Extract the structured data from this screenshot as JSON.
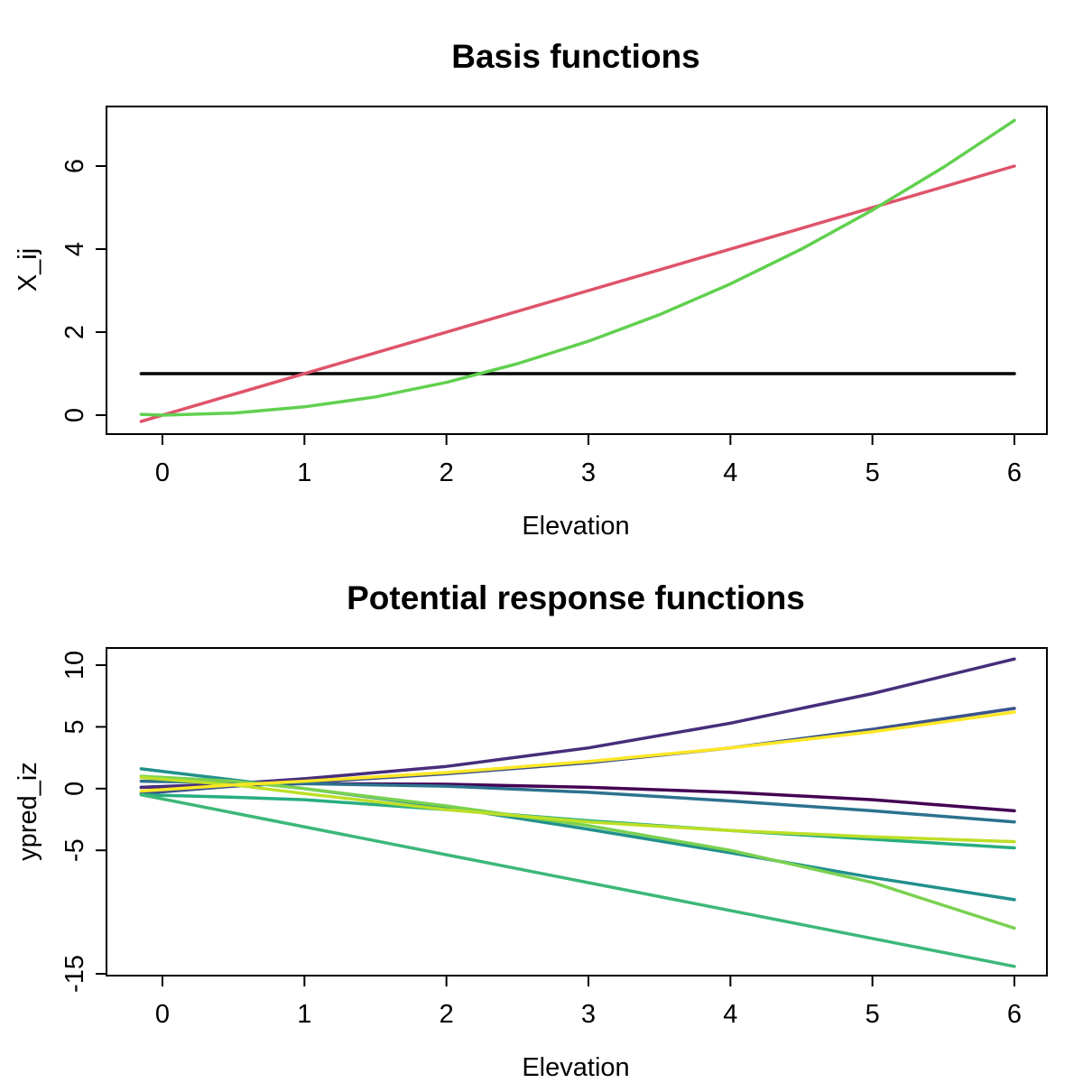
{
  "chart_data": [
    {
      "type": "line",
      "title": "Basis functions",
      "xlabel": "Elevation",
      "ylabel": "X_ij",
      "xlim": [
        -0.15,
        6.0
      ],
      "ylim": [
        -0.5,
        7.3
      ],
      "xticks": [
        0,
        1,
        2,
        3,
        4,
        5,
        6
      ],
      "yticks": [
        0,
        2,
        4,
        6
      ],
      "series": [
        {
          "color": "#000000",
          "x": [
            -0.15,
            6.0
          ],
          "y": [
            1,
            1
          ]
        },
        {
          "color": "#DF536B",
          "x": [
            -0.15,
            6.0
          ],
          "y": [
            -0.15,
            6.0
          ]
        },
        {
          "color": "#61D04F",
          "x": [
            -0.15,
            0,
            0.5,
            1,
            1.5,
            2,
            2.5,
            3,
            3.5,
            4,
            4.5,
            5,
            5.5,
            6.0
          ],
          "y": [
            0.02,
            0,
            0.05,
            0.2,
            0.44,
            0.79,
            1.24,
            1.78,
            2.42,
            3.16,
            4.0,
            4.94,
            5.97,
            7.1
          ]
        }
      ]
    },
    {
      "type": "line",
      "title": "Potential response functions",
      "xlabel": "Elevation",
      "ylabel": "ypred_iz",
      "xlim": [
        -0.15,
        6.0
      ],
      "ylim": [
        -15,
        10.5
      ],
      "xticks": [
        0,
        1,
        2,
        3,
        4,
        5,
        6
      ],
      "yticks": [
        10,
        5,
        0,
        -5,
        -15
      ],
      "series": [
        {
          "color": "#440154",
          "x": [
            -0.15,
            0.5,
            1,
            2,
            3,
            4,
            5,
            6.0
          ],
          "y": [
            0.1,
            0.3,
            0.4,
            0.35,
            0.1,
            -0.3,
            -0.9,
            -1.8
          ]
        },
        {
          "color": "#472D7B",
          "x": [
            -0.15,
            0.5,
            1,
            2,
            3,
            4,
            5,
            6.0
          ],
          "y": [
            0.1,
            0.4,
            0.8,
            1.8,
            3.3,
            5.3,
            7.7,
            10.5
          ]
        },
        {
          "color": "#3B528B",
          "x": [
            -0.15,
            0.5,
            1,
            2,
            3,
            4,
            5,
            6.0
          ],
          "y": [
            -0.4,
            0.2,
            0.5,
            1.2,
            2.1,
            3.3,
            4.8,
            6.5
          ]
        },
        {
          "color": "#2C728E",
          "x": [
            -0.15,
            0.5,
            1,
            2,
            3,
            4,
            5,
            6.0
          ],
          "y": [
            0.6,
            0.5,
            0.4,
            0.2,
            -0.3,
            -1.0,
            -1.8,
            -2.7
          ]
        },
        {
          "color": "#21908C",
          "x": [
            -0.15,
            0.5,
            1,
            2,
            3,
            4,
            5,
            6.0
          ],
          "y": [
            1.6,
            0.7,
            0.0,
            -1.5,
            -3.3,
            -5.2,
            -7.2,
            -9.0
          ]
        },
        {
          "color": "#27AD81",
          "x": [
            -0.15,
            0.5,
            1,
            2,
            3,
            4,
            5,
            6.0
          ],
          "y": [
            -0.5,
            -0.7,
            -0.9,
            -1.7,
            -2.6,
            -3.4,
            -4.1,
            -4.8
          ]
        },
        {
          "color": "#3CB878",
          "x": [
            -0.15,
            6.0
          ],
          "y": [
            -0.5,
            -14.4
          ]
        },
        {
          "color": "#7AD151",
          "x": [
            -0.15,
            0.5,
            1,
            2,
            3,
            4,
            5,
            6.0
          ],
          "y": [
            1.0,
            0.6,
            0.0,
            -1.4,
            -3.0,
            -5.0,
            -7.6,
            -11.3
          ]
        },
        {
          "color": "#BDDF26",
          "x": [
            -0.15,
            0.5,
            1,
            2,
            3,
            4,
            5,
            6.0
          ],
          "y": [
            0.9,
            0.3,
            -0.4,
            -1.7,
            -2.7,
            -3.4,
            -3.9,
            -4.3
          ]
        },
        {
          "color": "#FDE725",
          "x": [
            -0.15,
            0.5,
            1,
            2,
            3,
            4,
            5,
            6.0
          ],
          "y": [
            -0.2,
            0.3,
            0.6,
            1.3,
            2.2,
            3.3,
            4.6,
            6.2
          ]
        }
      ]
    }
  ]
}
